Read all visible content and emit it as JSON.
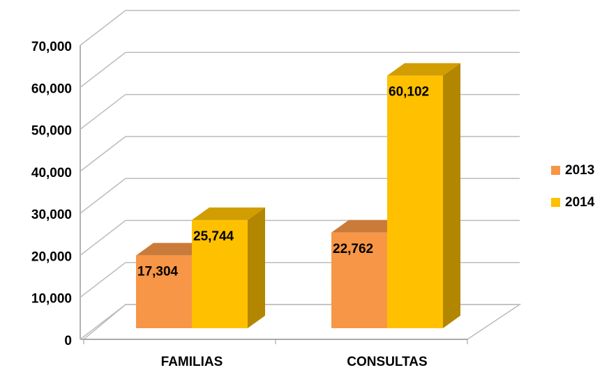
{
  "chart_data": {
    "type": "bar3d",
    "categories": [
      "FAMILIAS",
      "CONSULTAS"
    ],
    "series": [
      {
        "name": "2013",
        "color": "#f79646",
        "values": [
          17304,
          22762
        ],
        "value_labels": [
          "17,304",
          "22,762"
        ]
      },
      {
        "name": "2014",
        "color": "#ffc000",
        "values": [
          25744,
          60102
        ],
        "value_labels": [
          "25,744",
          "60,102"
        ]
      }
    ],
    "ylim": [
      0,
      70000
    ],
    "yticks": [
      0,
      {
        "value": 10000,
        "label": "10,000"
      },
      {
        "value": 20000,
        "label": "20,000"
      },
      {
        "value": 30000,
        "label": "30,000"
      },
      {
        "value": 40000,
        "label": "40,000"
      },
      {
        "value": 50000,
        "label": "50,000"
      },
      {
        "value": 60000,
        "label": "60,000"
      },
      {
        "value": 70000,
        "label": "70,000"
      }
    ],
    "grid": true,
    "legend": "right"
  }
}
